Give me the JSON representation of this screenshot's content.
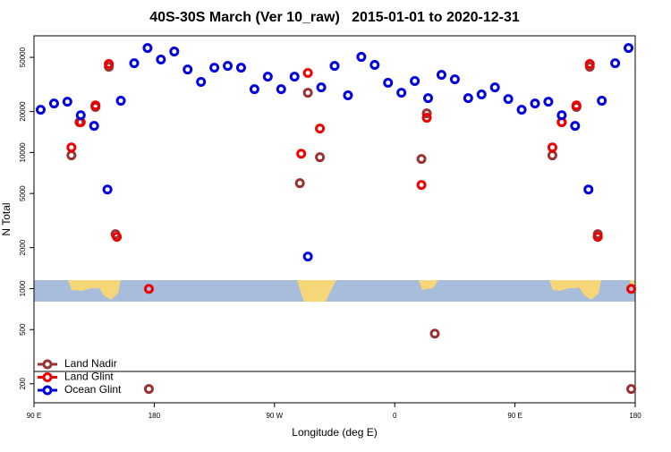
{
  "chart_data": {
    "type": "scatter",
    "title": "40S-30S March (Ver 10_raw)   2015-01-01 to 2020-12-31",
    "x_label": "Longitude (deg E)",
    "y_label": "N Total",
    "log_y": true,
    "legend": "bottom-left",
    "xlim": [
      90,
      540
    ],
    "xticks": [
      {
        "value": 90,
        "label": "90 E"
      },
      180,
      {
        "value": 270,
        "label": "90 W"
      },
      {
        "value": 360,
        "label": "0"
      },
      {
        "value": 450,
        "label": "90 E"
      },
      {
        "value": 540,
        "label": "180"
      }
    ],
    "ylim": [
      145,
      72000
    ],
    "yticks": [
      200,
      500,
      1000,
      2000,
      5000,
      10000,
      20000,
      50000
    ],
    "series": [
      {
        "name": "Land Nadir",
        "color": "#993333",
        "x": [
          118,
          124,
          136,
          146,
          151,
          176,
          289,
          295,
          304,
          380,
          384,
          390,
          478,
          485,
          496,
          506,
          512,
          537
        ],
        "values": [
          9530,
          16700,
          21600,
          42600,
          2510,
          183,
          5950,
          27500,
          9230,
          8960,
          19400,
          467,
          9530,
          16700,
          21600,
          42600,
          2510,
          183
        ]
      },
      {
        "name": "Land Glint",
        "color": "#ee0000",
        "x": [
          118,
          125,
          136,
          146,
          152,
          176,
          290,
          295,
          304,
          380,
          384,
          478,
          485,
          496,
          506,
          512,
          537
        ],
        "values": [
          10900,
          16700,
          22200,
          44700,
          2400,
          995,
          9800,
          38400,
          15000,
          5780,
          18000,
          10900,
          16700,
          22200,
          44700,
          2400,
          995
        ]
      },
      {
        "name": "Ocean Glint",
        "color": "#0000dd",
        "x": [
          95,
          105,
          115,
          125,
          135,
          145,
          155,
          165,
          175,
          185,
          195,
          205,
          215,
          225,
          235,
          245,
          255,
          265,
          275,
          285,
          295,
          305,
          315,
          325,
          335,
          345,
          355,
          365,
          375,
          385,
          395,
          405,
          415,
          425,
          435,
          445,
          455,
          465,
          475,
          485,
          495,
          505,
          515,
          525,
          535
        ],
        "values": [
          20600,
          22900,
          23600,
          18800,
          15700,
          5350,
          24000,
          45300,
          58600,
          48200,
          55200,
          40700,
          33000,
          42000,
          43300,
          42000,
          29200,
          36100,
          29200,
          36100,
          1720,
          30100,
          43300,
          26300,
          50400,
          44000,
          32500,
          27500,
          33500,
          25100,
          37200,
          34500,
          25100,
          26700,
          30100,
          24700,
          20600,
          22900,
          23600,
          18800,
          15700,
          5350,
          24000,
          45300,
          58600
        ]
      }
    ]
  }
}
